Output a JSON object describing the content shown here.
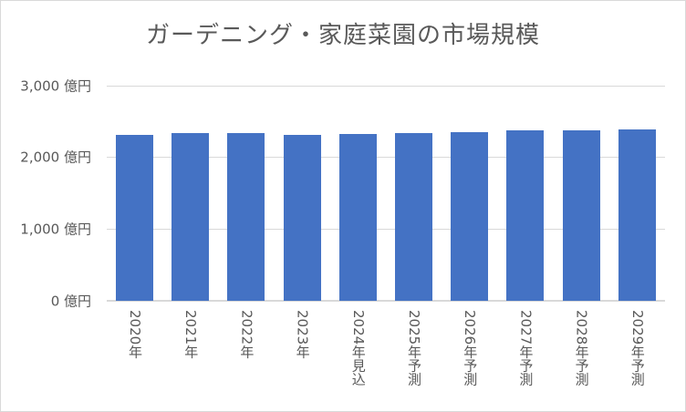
{
  "chart": {
    "title": "ガーデニング・家庭菜園の市場規模",
    "y_ticks": [
      "0 億円",
      "1,000 億円",
      "2,000 億円",
      "3,000 億円"
    ],
    "x_labels": [
      "2020年",
      "2021年",
      "2022年",
      "2023年",
      "2024年見込",
      "2025年予測",
      "2026年予測",
      "2027年予測",
      "2028年予測",
      "2029年予測"
    ],
    "bar_color": "#4472C4"
  },
  "chart_data": {
    "type": "bar",
    "title": "ガーデニング・家庭菜園の市場規模",
    "categories": [
      "2020年",
      "2021年",
      "2022年",
      "2023年",
      "2024年見込",
      "2025年予測",
      "2026年予測",
      "2027年予測",
      "2028年予測",
      "2029年予測"
    ],
    "values": [
      2315,
      2340,
      2340,
      2315,
      2325,
      2340,
      2350,
      2375,
      2375,
      2390
    ],
    "xlabel": "",
    "ylabel": "",
    "yunit": "億円",
    "ylim": [
      0,
      3000
    ],
    "yticks": [
      0,
      1000,
      2000,
      3000
    ],
    "grid": true,
    "legend": null
  }
}
